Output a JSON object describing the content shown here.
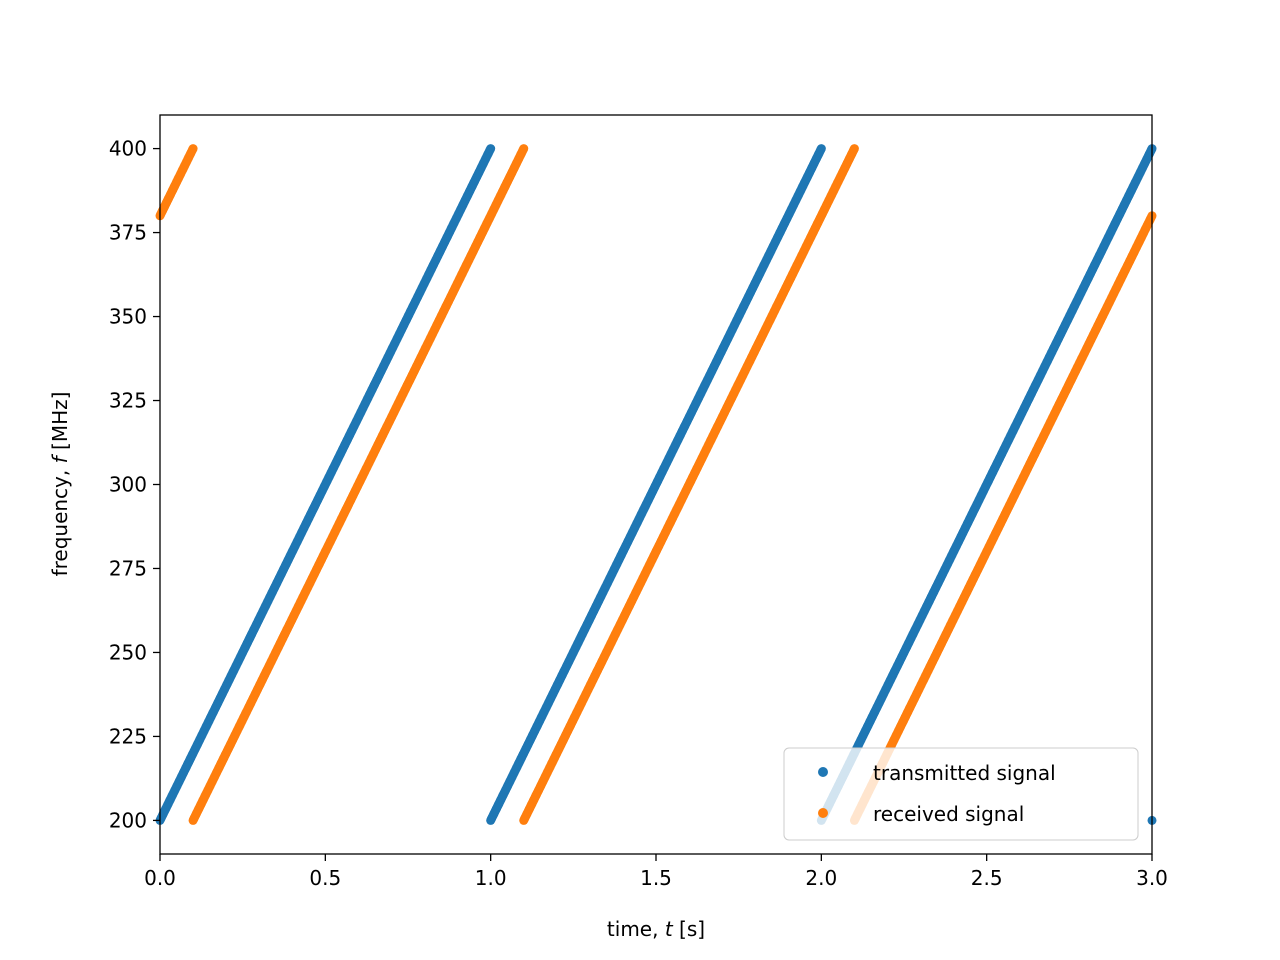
{
  "chart_data": {
    "type": "scatter",
    "xlabel": "time, t [s]",
    "xlabel_prefix": "time, ",
    "xlabel_var": "t",
    "xlabel_suffix": " [s]",
    "ylabel": "frequency, f [MHz]",
    "ylabel_prefix": "frequency, ",
    "ylabel_var": "f",
    "ylabel_suffix": " [MHz]",
    "xlim": [
      0.0,
      3.0
    ],
    "ylim": [
      190,
      410
    ],
    "x_ticks": [
      "0.0",
      "0.5",
      "1.0",
      "1.5",
      "2.0",
      "2.5",
      "3.0"
    ],
    "y_ticks": [
      "200",
      "225",
      "250",
      "275",
      "300",
      "325",
      "350",
      "375",
      "400"
    ],
    "grid": false,
    "legend_position": "lower right",
    "series": [
      {
        "name": "transmitted signal",
        "color": "#1f77b4",
        "segments": [
          {
            "x": [
              0.0,
              1.0
            ],
            "y": [
              200,
              400
            ]
          },
          {
            "x": [
              1.0,
              2.0
            ],
            "y": [
              200,
              400
            ]
          },
          {
            "x": [
              2.0,
              3.0
            ],
            "y": [
              200,
              400
            ]
          },
          {
            "x": [
              3.0,
              3.0
            ],
            "y": [
              200,
              200
            ]
          }
        ]
      },
      {
        "name": "received signal",
        "color": "#ff7f0e",
        "segments": [
          {
            "x": [
              0.0,
              0.1
            ],
            "y": [
              380,
              400
            ]
          },
          {
            "x": [
              0.1,
              1.1
            ],
            "y": [
              200,
              400
            ]
          },
          {
            "x": [
              1.1,
              2.1
            ],
            "y": [
              200,
              400
            ]
          },
          {
            "x": [
              2.1,
              3.0
            ],
            "y": [
              200,
              380
            ]
          }
        ]
      }
    ]
  }
}
